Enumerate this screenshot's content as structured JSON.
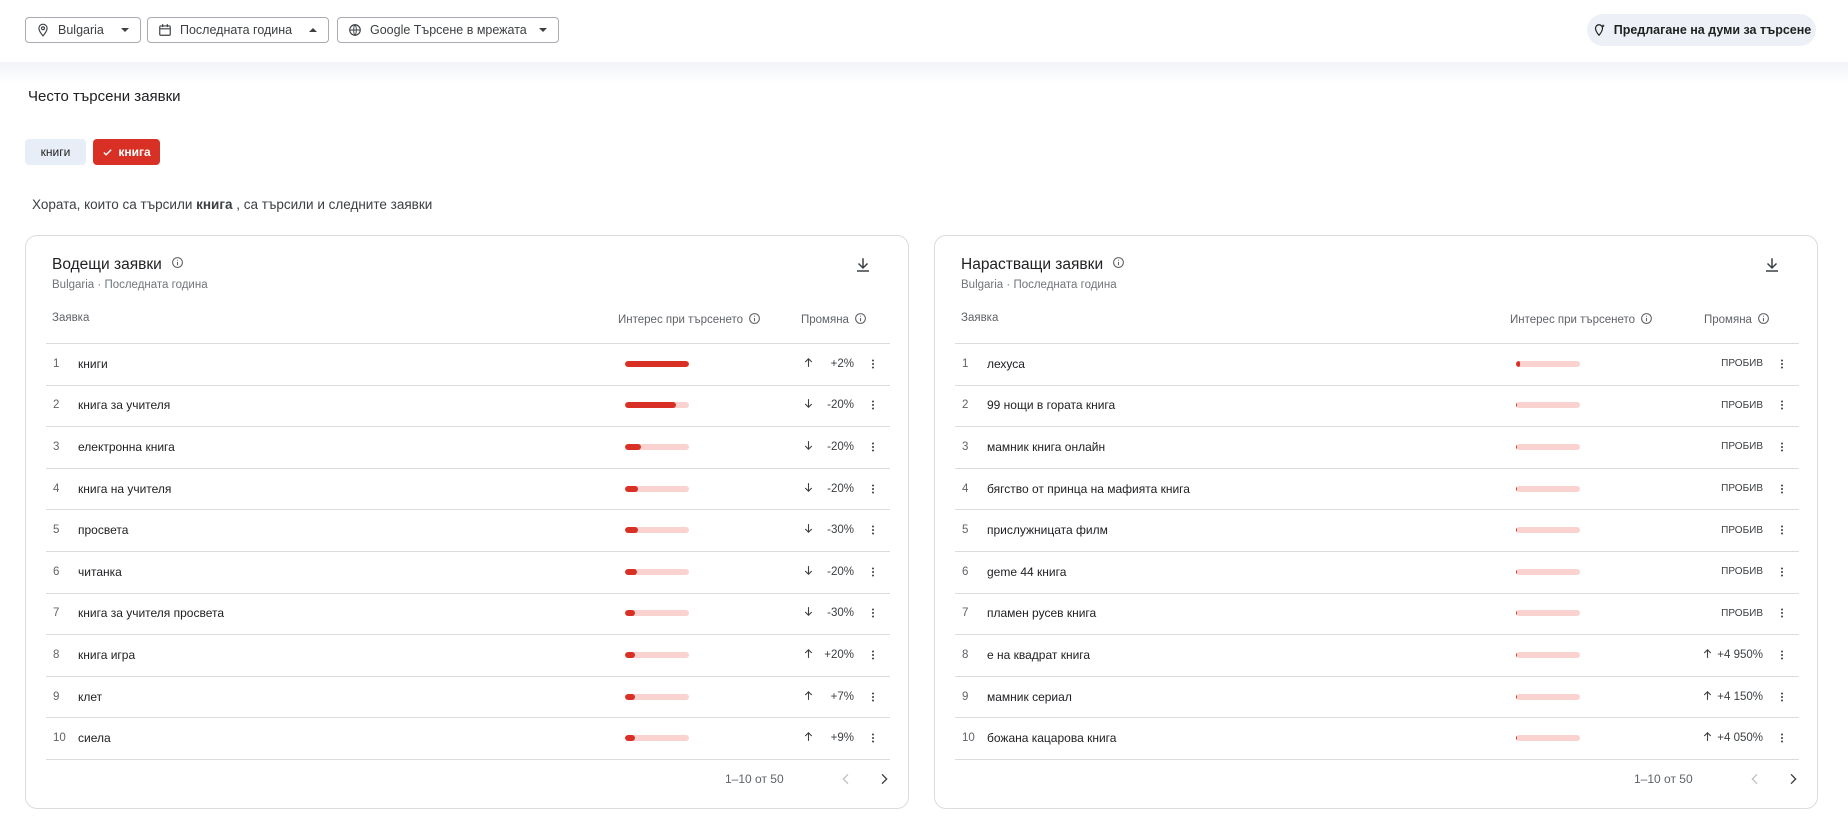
{
  "filters": [
    "Bulgaria",
    "Последната година",
    "Google Търсене в мрежата"
  ],
  "suggest_button": "Предлагане на думи за търсене",
  "section_title": "Често търсени заявки",
  "chips": [
    "книги",
    "книга"
  ],
  "description": {
    "before": "Хората, които са търсили",
    "term": "книга",
    "after": ", са търсили и следните заявки"
  },
  "interest_range": [
    0,
    100
  ],
  "panels": [
    {
      "title": "Водещи заявки",
      "location": "Bulgaria",
      "period": "Последната година",
      "columns": [
        "Заявка",
        "Интерес при търсенето",
        "Промяна"
      ],
      "rows": [
        {
          "rank": 1,
          "query": "книги",
          "interest": 100,
          "change": "+2%"
        },
        {
          "rank": 2,
          "query": "книга за учителя",
          "interest": 80,
          "change": "-20%"
        },
        {
          "rank": 3,
          "query": "електронна книга",
          "interest": 25,
          "change": "-20%"
        },
        {
          "rank": 4,
          "query": "книга на учителя",
          "interest": 21,
          "change": "-20%"
        },
        {
          "rank": 5,
          "query": "просвета",
          "interest": 21,
          "change": "-30%"
        },
        {
          "rank": 6,
          "query": "читанка",
          "interest": 18,
          "change": "-20%"
        },
        {
          "rank": 7,
          "query": "книга за учителя просвета",
          "interest": 16,
          "change": "-30%"
        },
        {
          "rank": 8,
          "query": "книга игра",
          "interest": 16,
          "change": "+20%"
        },
        {
          "rank": 9,
          "query": "клет",
          "interest": 16,
          "change": "+7%"
        },
        {
          "rank": 10,
          "query": "сиела",
          "interest": 16,
          "change": "+9%"
        }
      ],
      "pagination": "1–10 от 50"
    },
    {
      "title": "Нарастващи заявки",
      "location": "Bulgaria",
      "period": "Последната година",
      "columns": [
        "Заявка",
        "Интерес при търсенето",
        "Промяна"
      ],
      "rows": [
        {
          "rank": 1,
          "query": "лехуса",
          "interest": 6,
          "change": "ПРОБИВ"
        },
        {
          "rank": 2,
          "query": "99 нощи в гората книга",
          "interest": 2,
          "change": "ПРОБИВ"
        },
        {
          "rank": 3,
          "query": "мамник книга онлайн",
          "interest": 2,
          "change": "ПРОБИВ"
        },
        {
          "rank": 4,
          "query": "бягство от принца на мафията книга",
          "interest": 2,
          "change": "ПРОБИВ"
        },
        {
          "rank": 5,
          "query": "прислужницата филм",
          "interest": 2,
          "change": "ПРОБИВ"
        },
        {
          "rank": 6,
          "query": "geme 44 книга",
          "interest": 2,
          "change": "ПРОБИВ"
        },
        {
          "rank": 7,
          "query": "пламен русев книга",
          "interest": 2,
          "change": "ПРОБИВ"
        },
        {
          "rank": 8,
          "query": "е на квадрат книга",
          "interest": 2,
          "change": "+4 950%"
        },
        {
          "rank": 9,
          "query": "мамник сериал",
          "interest": 2,
          "change": "+4 150%"
        },
        {
          "rank": 10,
          "query": "божана кацарова книга",
          "interest": 2,
          "change": "+4 050%"
        }
      ],
      "pagination": "1–10 от 50"
    }
  ]
}
